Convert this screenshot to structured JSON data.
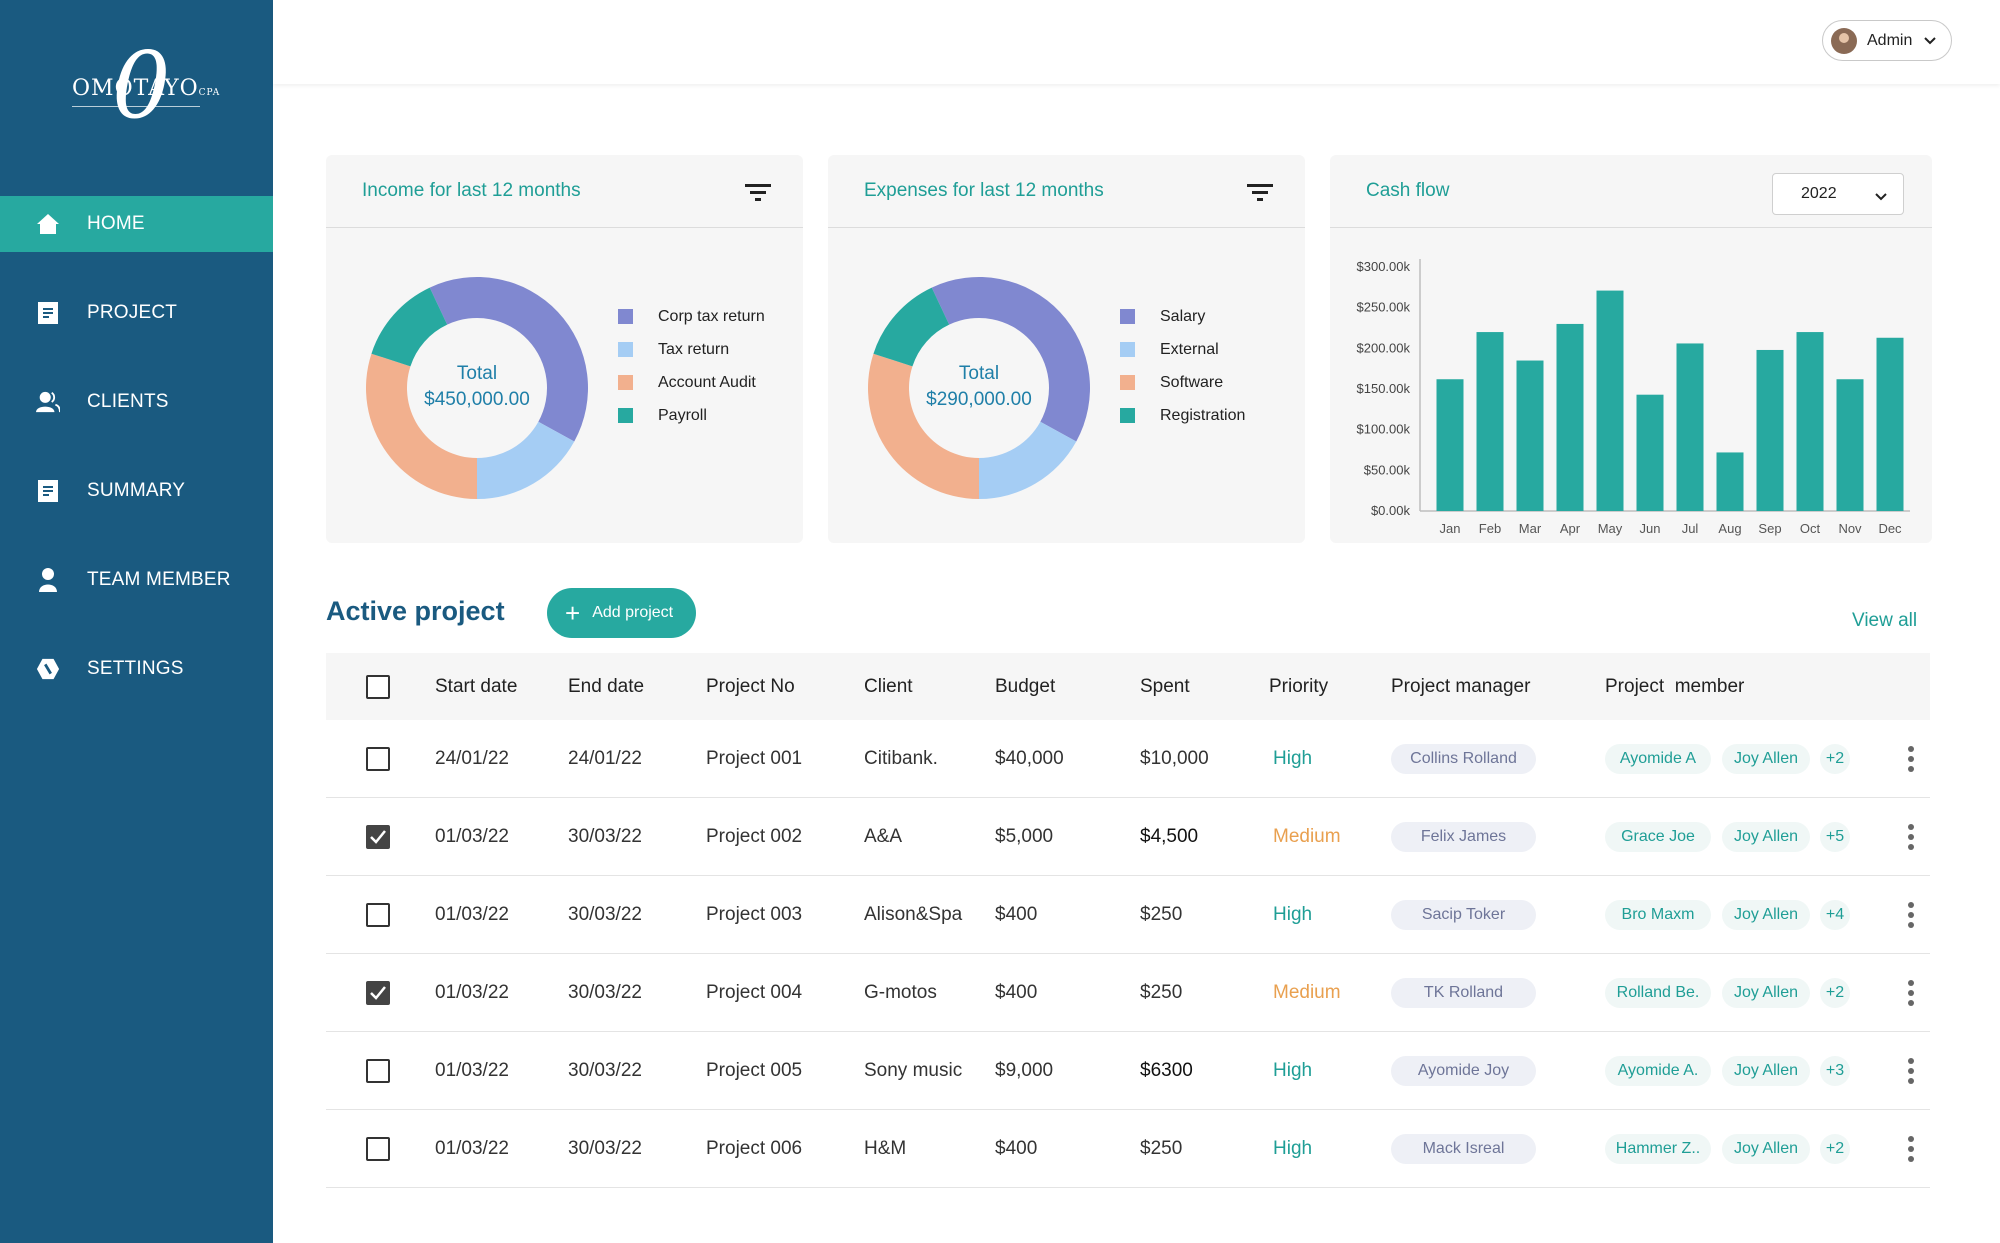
{
  "brand": {
    "logo_text": "OMOTAYO",
    "logo_mark": "0",
    "logo_suffix": "CPA"
  },
  "sidebar": {
    "items": [
      {
        "label": "HOME",
        "icon": "home-icon",
        "active": true
      },
      {
        "label": "PROJECT",
        "icon": "document-icon",
        "active": false
      },
      {
        "label": "CLIENTS",
        "icon": "clients-icon",
        "active": false
      },
      {
        "label": "SUMMARY",
        "icon": "summary-icon",
        "active": false
      },
      {
        "label": "TEAM MEMBER",
        "icon": "person-icon",
        "active": false
      },
      {
        "label": "SETTINGS",
        "icon": "settings-icon",
        "active": false
      }
    ]
  },
  "user": {
    "name": "Admin"
  },
  "income": {
    "title": "Income for last 12 months",
    "total_label": "Total",
    "total_value": "$450,000.00",
    "legend": [
      {
        "label": "Corp tax return",
        "color": "#8088d0",
        "fraction": 0.4
      },
      {
        "label": "Tax return",
        "color": "#a5cdf4",
        "fraction": 0.17
      },
      {
        "label": "Account Audit",
        "color": "#f2b08e",
        "fraction": 0.3
      },
      {
        "label": "Payroll",
        "color": "#27a9a0",
        "fraction": 0.13
      }
    ]
  },
  "expenses": {
    "title": "Expenses for last 12 months",
    "total_label": "Total",
    "total_value": "$290,000.00",
    "legend": [
      {
        "label": "Salary",
        "color": "#8088d0",
        "fraction": 0.4
      },
      {
        "label": "External",
        "color": "#a5cdf4",
        "fraction": 0.17
      },
      {
        "label": "Software",
        "color": "#f2b08e",
        "fraction": 0.3
      },
      {
        "label": "Registration",
        "color": "#27a9a0",
        "fraction": 0.13
      }
    ]
  },
  "cashflow": {
    "title": "Cash flow",
    "year": "2022"
  },
  "chart_data": {
    "type": "bar",
    "categories": [
      "Jan",
      "Feb",
      "Mar",
      "Apr",
      "May",
      "Jun",
      "Jul",
      "Aug",
      "Sep",
      "Oct",
      "Nov",
      "Dec"
    ],
    "values": [
      162,
      220,
      185,
      230,
      271,
      143,
      206,
      72,
      198,
      220,
      162,
      213
    ],
    "ylim": [
      0,
      300
    ],
    "yticks": [
      "$0.00k",
      "$50.00k",
      "$100.00k",
      "$150.00k",
      "$200.00k",
      "$250.00k",
      "$300.00k"
    ],
    "grid": false,
    "color": "#27a9a0"
  },
  "projects": {
    "title": "Active project",
    "add_label": "Add project",
    "view_all": "View all",
    "columns": [
      "Start date",
      "End date",
      "Project No",
      "Client",
      "Budget",
      "Spent",
      "Priority",
      "Project manager",
      "Project  member"
    ],
    "rows": [
      {
        "checked": false,
        "start": "24/01/22",
        "end": "24/01/22",
        "no": "Project 001",
        "client": "Citibank.",
        "budget": "$40,000",
        "spent": "$10,000",
        "priority": "High",
        "manager": "Collins Rolland",
        "m1": "Ayomide A",
        "m2": "Joy Allen",
        "more": "+2"
      },
      {
        "checked": true,
        "start": "01/03/22",
        "end": "30/03/22",
        "no": "Project 002",
        "client": "A&A",
        "budget": "$5,000",
        "spent": "$4,500",
        "priority": "Medium",
        "manager": "Felix James",
        "m1": "Grace Joe",
        "m2": "Joy Allen",
        "more": "+5"
      },
      {
        "checked": false,
        "start": "01/03/22",
        "end": "30/03/22",
        "no": "Project 003",
        "client": "Alison&Spa",
        "budget": "$400",
        "spent": "$250",
        "priority": "High",
        "manager": "Sacip Toker",
        "m1": "Bro Maxm",
        "m2": "Joy Allen",
        "more": "+4"
      },
      {
        "checked": true,
        "start": "01/03/22",
        "end": "30/03/22",
        "no": "Project 004",
        "client": "G-motos",
        "budget": "$400",
        "spent": "$250",
        "priority": "Medium",
        "manager": "TK Rolland",
        "m1": "Rolland Be.",
        "m2": "Joy Allen",
        "more": "+2"
      },
      {
        "checked": false,
        "start": "01/03/22",
        "end": "30/03/22",
        "no": "Project 005",
        "client": "Sony music",
        "budget": "$9,000",
        "spent": "$6300",
        "priority": "High",
        "manager": "Ayomide Joy",
        "m1": "Ayomide A.",
        "m2": "Joy Allen",
        "more": "+3"
      },
      {
        "checked": false,
        "start": "01/03/22",
        "end": "30/03/22",
        "no": "Project 006",
        "client": "H&M",
        "budget": "$400",
        "spent": "$250",
        "priority": "High",
        "manager": "Mack Isreal",
        "m1": "Hammer Z..",
        "m2": "Joy Allen",
        "more": "+2"
      }
    ]
  }
}
